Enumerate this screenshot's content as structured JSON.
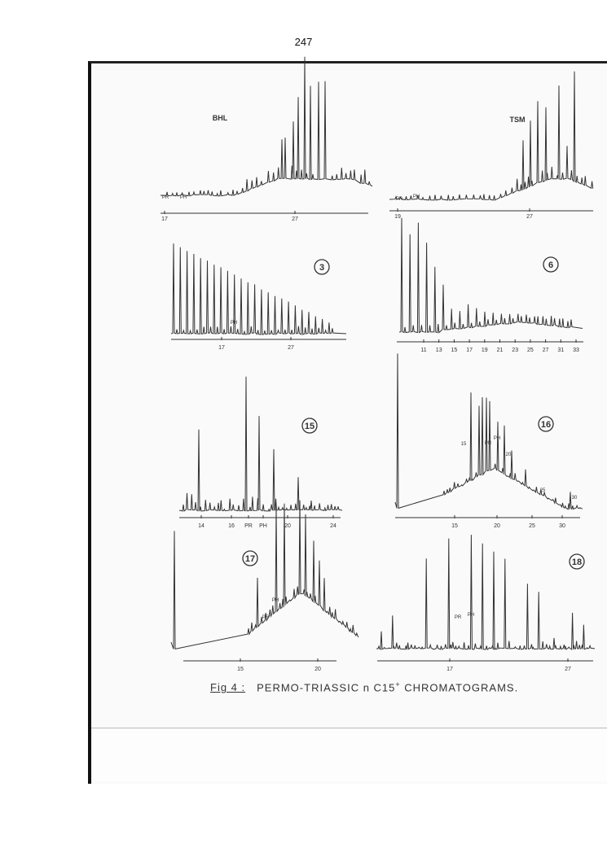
{
  "page_number": "247",
  "figure": {
    "caption_label": "Fig 4 :",
    "caption_text": "PERMO-TRIASSIC  n C15",
    "caption_sup": "+",
    "caption_tail": " CHROMATOGRAMS."
  },
  "panels": [
    {
      "id": "BHL",
      "title": "BHL",
      "ticks": [
        "17",
        "27"
      ],
      "annotations": [
        "PR",
        "PH"
      ]
    },
    {
      "id": "TSM",
      "title": "TSM",
      "ticks": [
        "19",
        "27"
      ],
      "annotations": [
        "PR",
        "PH"
      ]
    },
    {
      "id": "3",
      "title": "3",
      "ticks": [
        "17",
        "27"
      ],
      "annotations": [
        "PH"
      ]
    },
    {
      "id": "6",
      "title": "6",
      "ticks": [
        "11",
        "13",
        "15",
        "17",
        "19",
        "21",
        "23",
        "25",
        "27",
        "31",
        "33"
      ],
      "annotations": []
    },
    {
      "id": "15",
      "title": "15",
      "ticks": [
        "14",
        "16",
        "PR",
        "PH",
        "20",
        "24"
      ],
      "annotations": []
    },
    {
      "id": "16",
      "title": "16",
      "ticks": [
        "15",
        "20",
        "25",
        "30"
      ],
      "annotations": [
        "15",
        "PR",
        "PH",
        "20",
        "25",
        "30"
      ]
    },
    {
      "id": "17",
      "title": "17",
      "ticks": [
        "15",
        "20"
      ],
      "annotations": [
        "PR",
        "PH"
      ]
    },
    {
      "id": "18",
      "title": "18",
      "ticks": [
        "17",
        "27"
      ],
      "annotations": [
        "PR",
        "PH"
      ]
    }
  ],
  "colors": {
    "ink": "#333333",
    "border": "#111111"
  }
}
